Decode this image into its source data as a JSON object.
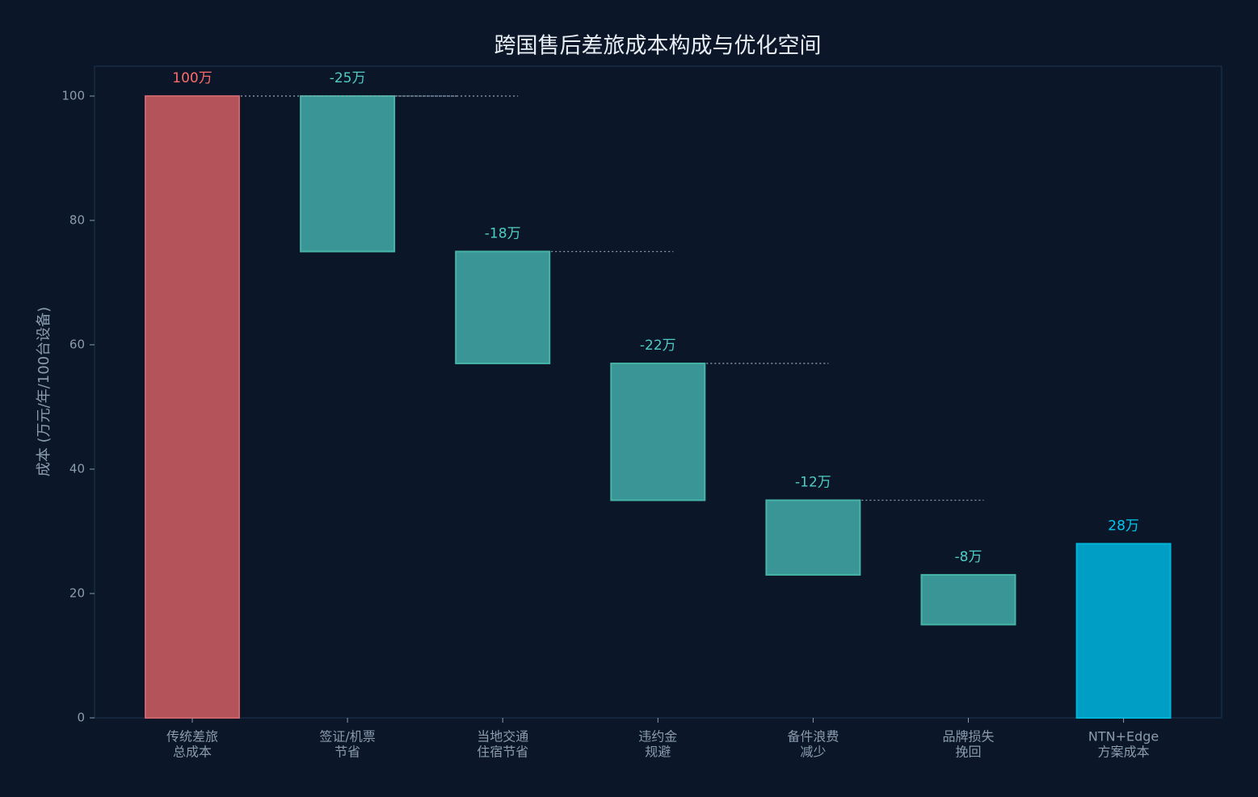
{
  "chart_data": {
    "type": "waterfall",
    "title": "跨国售后差旅成本构成与优化空间",
    "y_label": "成本 (万元/年/100台设备)",
    "categories": [
      [
        "传统差旅",
        "总成本"
      ],
      [
        "签证/机票",
        "节省"
      ],
      [
        "当地交通",
        "住宿节省"
      ],
      [
        "违约金",
        "规避"
      ],
      [
        "备件浪费",
        "减少"
      ],
      [
        "品牌损失",
        "挽回"
      ],
      [
        "NTN+Edge",
        "方案成本"
      ]
    ],
    "measure": [
      "absolute",
      "relative",
      "relative",
      "relative",
      "relative",
      "relative",
      "absolute"
    ],
    "values": [
      100,
      -25,
      -18,
      -22,
      -12,
      -8,
      28
    ],
    "value_labels": [
      "100万",
      "-25万",
      "-18万",
      "-22万",
      "-12万",
      "-8万",
      "28万"
    ],
    "colors": [
      "#b5535a",
      "#3a9696",
      "#3a9696",
      "#3a9696",
      "#3a9696",
      "#3a9696",
      "#009ec4"
    ],
    "edge_colors": [
      "#c8646a",
      "#45b5a8",
      "#45b5a8",
      "#45b5a8",
      "#45b5a8",
      "#45b5a8",
      "#00b4d8"
    ],
    "label_colors": [
      "#ff6b6b",
      "#4ecdc4",
      "#4ecdc4",
      "#4ecdc4",
      "#4ecdc4",
      "#4ecdc4",
      "#00c8f0"
    ],
    "ylim": [
      0,
      104.8
    ],
    "yticks": [
      0,
      20,
      40,
      60,
      80,
      100
    ]
  }
}
